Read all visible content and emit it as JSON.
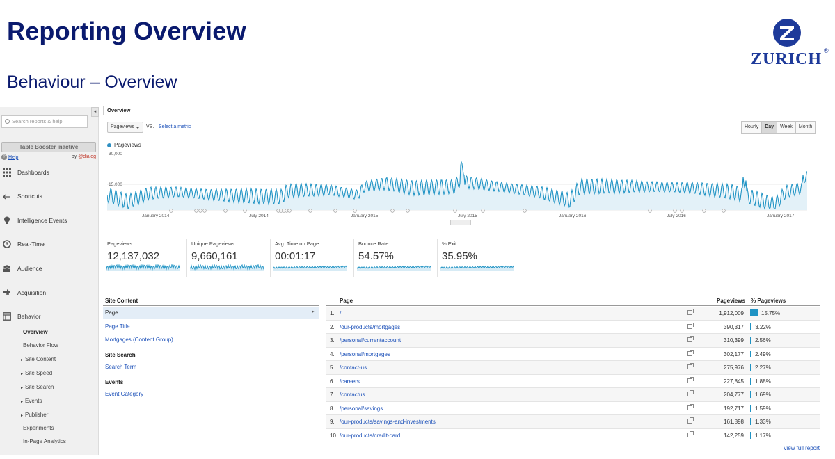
{
  "slide": {
    "title": "Reporting Overview",
    "subtitle": "Behaviour – Overview",
    "logo_text": "ZURICH",
    "logo_reg": "®",
    "brand_color": "#0a1a6e"
  },
  "sidebar": {
    "search_placeholder": "Search reports & help",
    "booster_label": "Table Booster inactive",
    "help_label": "Help",
    "by_label": "by",
    "by_brand": "@dialog",
    "items": [
      {
        "label": "Dashboards",
        "icon": "grid-icon"
      },
      {
        "label": "Shortcuts",
        "icon": "arrow-shortcut-icon"
      },
      {
        "label": "Intelligence Events",
        "icon": "lightbulb-icon"
      },
      {
        "label": "Real-Time",
        "icon": "clock-icon"
      },
      {
        "label": "Audience",
        "icon": "people-icon"
      },
      {
        "label": "Acquisition",
        "icon": "acquisition-arrows-icon"
      },
      {
        "label": "Behavior",
        "icon": "behavior-window-icon"
      }
    ],
    "behavior_sub": [
      {
        "label": "Overview",
        "tri": ""
      },
      {
        "label": "Behavior Flow",
        "tri": ""
      },
      {
        "label": "Site Content",
        "tri": "▸"
      },
      {
        "label": "Site Speed",
        "tri": "▸"
      },
      {
        "label": "Site Search",
        "tri": "▸"
      },
      {
        "label": "Events",
        "tri": "▸"
      },
      {
        "label": "Publisher",
        "tri": "▸"
      },
      {
        "label": "Experiments",
        "tri": ""
      },
      {
        "label": "In-Page Analytics",
        "tri": ""
      }
    ]
  },
  "main": {
    "tab_label": "Overview",
    "metric_select": "Pageviews",
    "vs_label": "VS.",
    "select_metric_link": "Select a metric",
    "granularity": [
      "Hourly",
      "Day",
      "Week",
      "Month"
    ],
    "granularity_selected": "Day"
  },
  "chart_data": {
    "type": "line",
    "legend": "Pageviews",
    "y_ticks": [
      "30,000",
      "15,000"
    ],
    "ylim": [
      0,
      30000
    ],
    "x_ticks": [
      "January 2014",
      "July 2014",
      "January 2015",
      "July 2015",
      "January 2016",
      "July 2016",
      "January 2017"
    ],
    "series_color": "#1f93c4",
    "grid": true
  },
  "scorecards": [
    {
      "label": "Pageviews",
      "value": "12,137,032"
    },
    {
      "label": "Unique Pageviews",
      "value": "9,660,161"
    },
    {
      "label": "Avg. Time on Page",
      "value": "00:01:17"
    },
    {
      "label": "Bounce Rate",
      "value": "54.57%"
    },
    {
      "label": "% Exit",
      "value": "35.95%"
    }
  ],
  "site_panel": {
    "site_content_header": "Site Content",
    "selected": "Page",
    "links": [
      "Page Title",
      "Mortgages (Content Group)"
    ],
    "site_search_header": "Site Search",
    "site_search_link": "Search Term",
    "events_header": "Events",
    "events_link": "Event Category"
  },
  "pages_table": {
    "col_page": "Page",
    "col_pageviews": "Pageviews",
    "col_pct": "% Pageviews",
    "rows": [
      {
        "num": "1.",
        "path": "/",
        "pageviews": "1,912,009",
        "pct": "15.75%",
        "share": 15.75
      },
      {
        "num": "2.",
        "path": "/our-products/mortgages",
        "pageviews": "390,317",
        "pct": "3.22%",
        "share": 3.22
      },
      {
        "num": "3.",
        "path": "/personal/currentaccount",
        "pageviews": "310,399",
        "pct": "2.56%",
        "share": 2.56
      },
      {
        "num": "4.",
        "path": "/personal/mortgages",
        "pageviews": "302,177",
        "pct": "2.49%",
        "share": 2.49
      },
      {
        "num": "5.",
        "path": "/contact-us",
        "pageviews": "275,976",
        "pct": "2.27%",
        "share": 2.27
      },
      {
        "num": "6.",
        "path": "/careers",
        "pageviews": "227,845",
        "pct": "1.88%",
        "share": 1.88
      },
      {
        "num": "7.",
        "path": "/contactus",
        "pageviews": "204,777",
        "pct": "1.69%",
        "share": 1.69
      },
      {
        "num": "8.",
        "path": "/personal/savings",
        "pageviews": "192,717",
        "pct": "1.59%",
        "share": 1.59
      },
      {
        "num": "9.",
        "path": "/our-products/savings-and-investments",
        "pageviews": "161,898",
        "pct": "1.33%",
        "share": 1.33
      },
      {
        "num": "10.",
        "path": "/our-products/credit-card",
        "pageviews": "142,259",
        "pct": "1.17%",
        "share": 1.17
      }
    ],
    "view_full": "view full report"
  }
}
